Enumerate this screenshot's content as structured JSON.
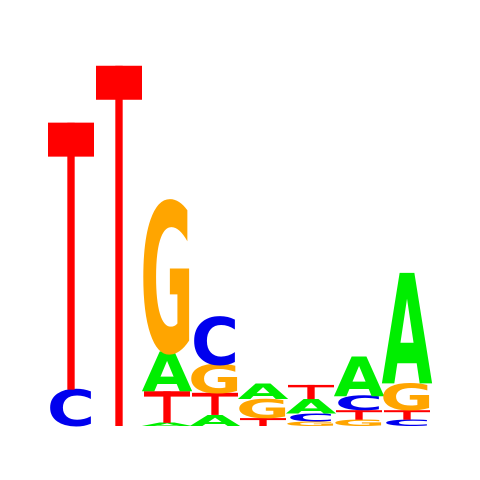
{
  "sequence_logo": {
    "alphabet": [
      "A",
      "C",
      "G",
      "T"
    ],
    "colors": {
      "A": "#00ee00",
      "C": "#0000ee",
      "G": "#ffa500",
      "T": "#ff0000"
    },
    "positions": [
      {
        "position": 1,
        "letters": [
          {
            "base": "C",
            "height": 0.23
          },
          {
            "base": "T",
            "height": 1.69
          }
        ]
      },
      {
        "position": 2,
        "letters": [
          {
            "base": "T",
            "height": 2.28
          }
        ]
      },
      {
        "position": 3,
        "letters": [
          {
            "base": "A",
            "height": 0.02
          },
          {
            "base": "T",
            "height": 0.2
          },
          {
            "base": "A",
            "height": 0.25
          },
          {
            "base": "G",
            "height": 0.95
          }
        ]
      },
      {
        "position": 4,
        "letters": [
          {
            "base": "A",
            "height": 0.07
          },
          {
            "base": "T",
            "height": 0.14
          },
          {
            "base": "G",
            "height": 0.18
          },
          {
            "base": "C",
            "height": 0.3
          }
        ]
      },
      {
        "position": 5,
        "letters": [
          {
            "base": "T",
            "height": 0.05
          },
          {
            "base": "G",
            "height": 0.12
          },
          {
            "base": "A",
            "height": 0.1
          }
        ]
      },
      {
        "position": 6,
        "letters": [
          {
            "base": "G",
            "height": 0.03
          },
          {
            "base": "C",
            "height": 0.05
          },
          {
            "base": "A",
            "height": 0.09
          },
          {
            "base": "T",
            "height": 0.09
          }
        ]
      },
      {
        "position": 7,
        "letters": [
          {
            "base": "G",
            "height": 0.04
          },
          {
            "base": "T",
            "height": 0.06
          },
          {
            "base": "C",
            "height": 0.09
          },
          {
            "base": "A",
            "height": 0.25
          }
        ]
      },
      {
        "position": 8,
        "letters": [
          {
            "base": "C",
            "height": 0.04
          },
          {
            "base": "T",
            "height": 0.06
          },
          {
            "base": "G",
            "height": 0.17
          },
          {
            "base": "A",
            "height": 0.7
          }
        ]
      }
    ]
  }
}
